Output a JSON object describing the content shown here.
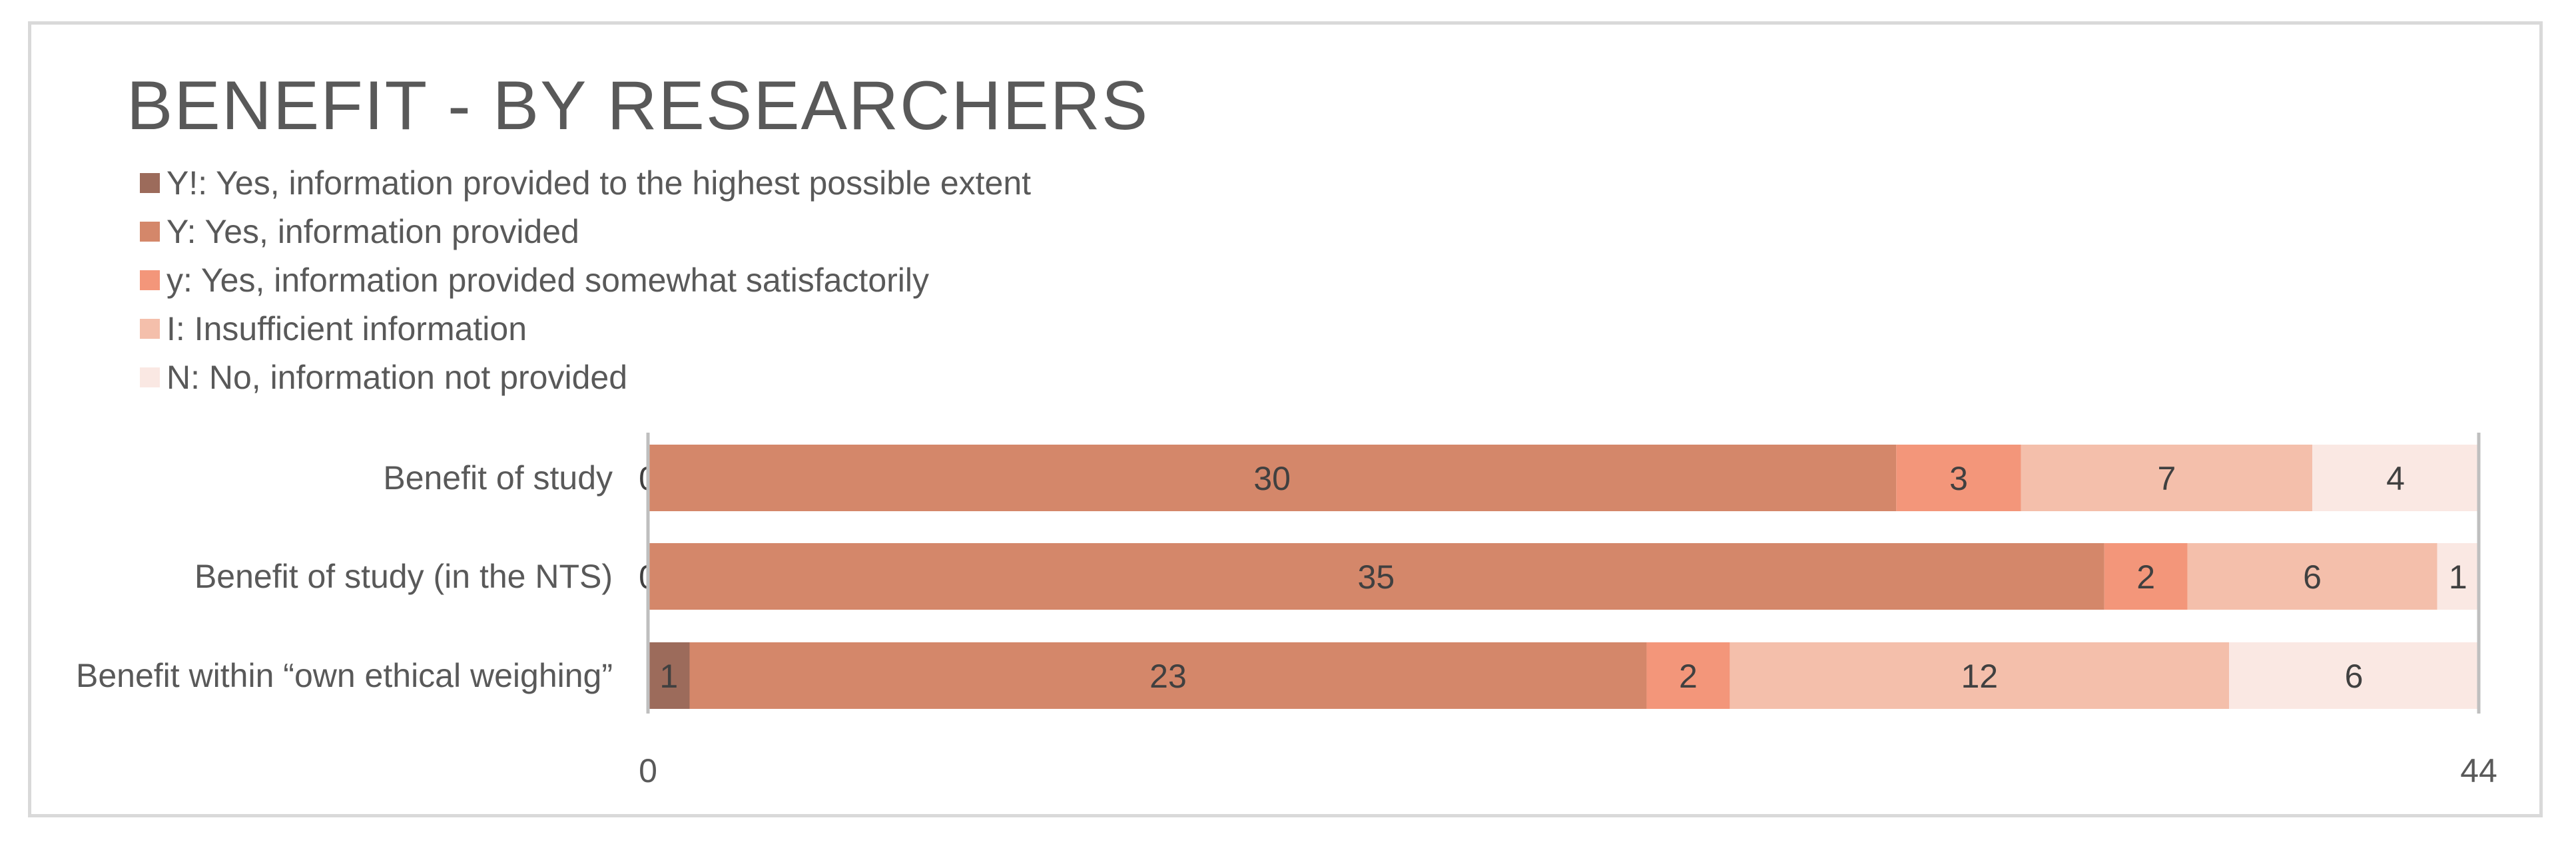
{
  "chart_data": {
    "type": "bar",
    "orientation": "horizontal",
    "stacked": true,
    "title": "BENEFIT - BY RESEARCHERS",
    "categories": [
      "Benefit of study",
      "Benefit of study (in the NTS)",
      "Benefit within “own ethical weighing”"
    ],
    "series": [
      {
        "name": "Y!: Yes, information provided to the highest possible extent",
        "color": "#9c6b5b",
        "values": [
          0,
          0,
          1
        ]
      },
      {
        "name": "Y: Yes, information provided",
        "color": "#d4876a",
        "values": [
          30,
          35,
          23
        ]
      },
      {
        "name": "y: Yes, information provided somewhat satisfactorily",
        "color": "#f3967a",
        "values": [
          3,
          2,
          2
        ]
      },
      {
        "name": "I: Insufficient information",
        "color": "#f4bfab",
        "values": [
          7,
          6,
          12
        ]
      },
      {
        "name": "N: No, information not provided",
        "color": "#fae8e3",
        "values": [
          4,
          1,
          6
        ]
      }
    ],
    "xlim": [
      0,
      44
    ],
    "x_ticks": [
      "0",
      "44"
    ],
    "legend_position": "top-left",
    "grid": false
  }
}
